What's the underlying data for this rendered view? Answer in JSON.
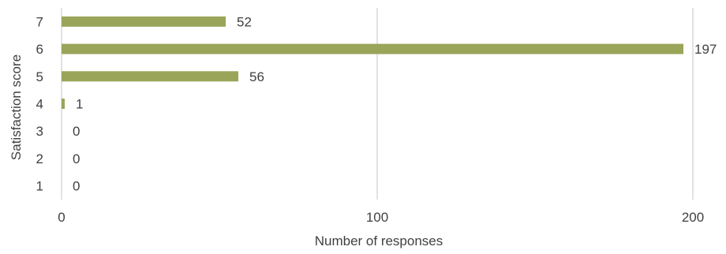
{
  "chart_data": {
    "type": "bar",
    "orientation": "horizontal",
    "categories": [
      "1",
      "2",
      "3",
      "4",
      "5",
      "6",
      "7"
    ],
    "series": [
      {
        "values": [
          0,
          0,
          0,
          1,
          56,
          197,
          52
        ]
      }
    ],
    "title": "",
    "xlabel": "Number of responses",
    "ylabel": "Satisfaction score",
    "xlim": [
      0,
      200
    ],
    "x_ticks": [
      "0",
      "100",
      "200"
    ],
    "data_labels": [
      "0",
      "0",
      "0",
      "1",
      "56",
      "197",
      "52"
    ],
    "grid": "vertical",
    "legend": "none",
    "colors": {
      "bar": "#9aa55a",
      "grid": "#d9d9d9",
      "text": "#404040"
    }
  }
}
